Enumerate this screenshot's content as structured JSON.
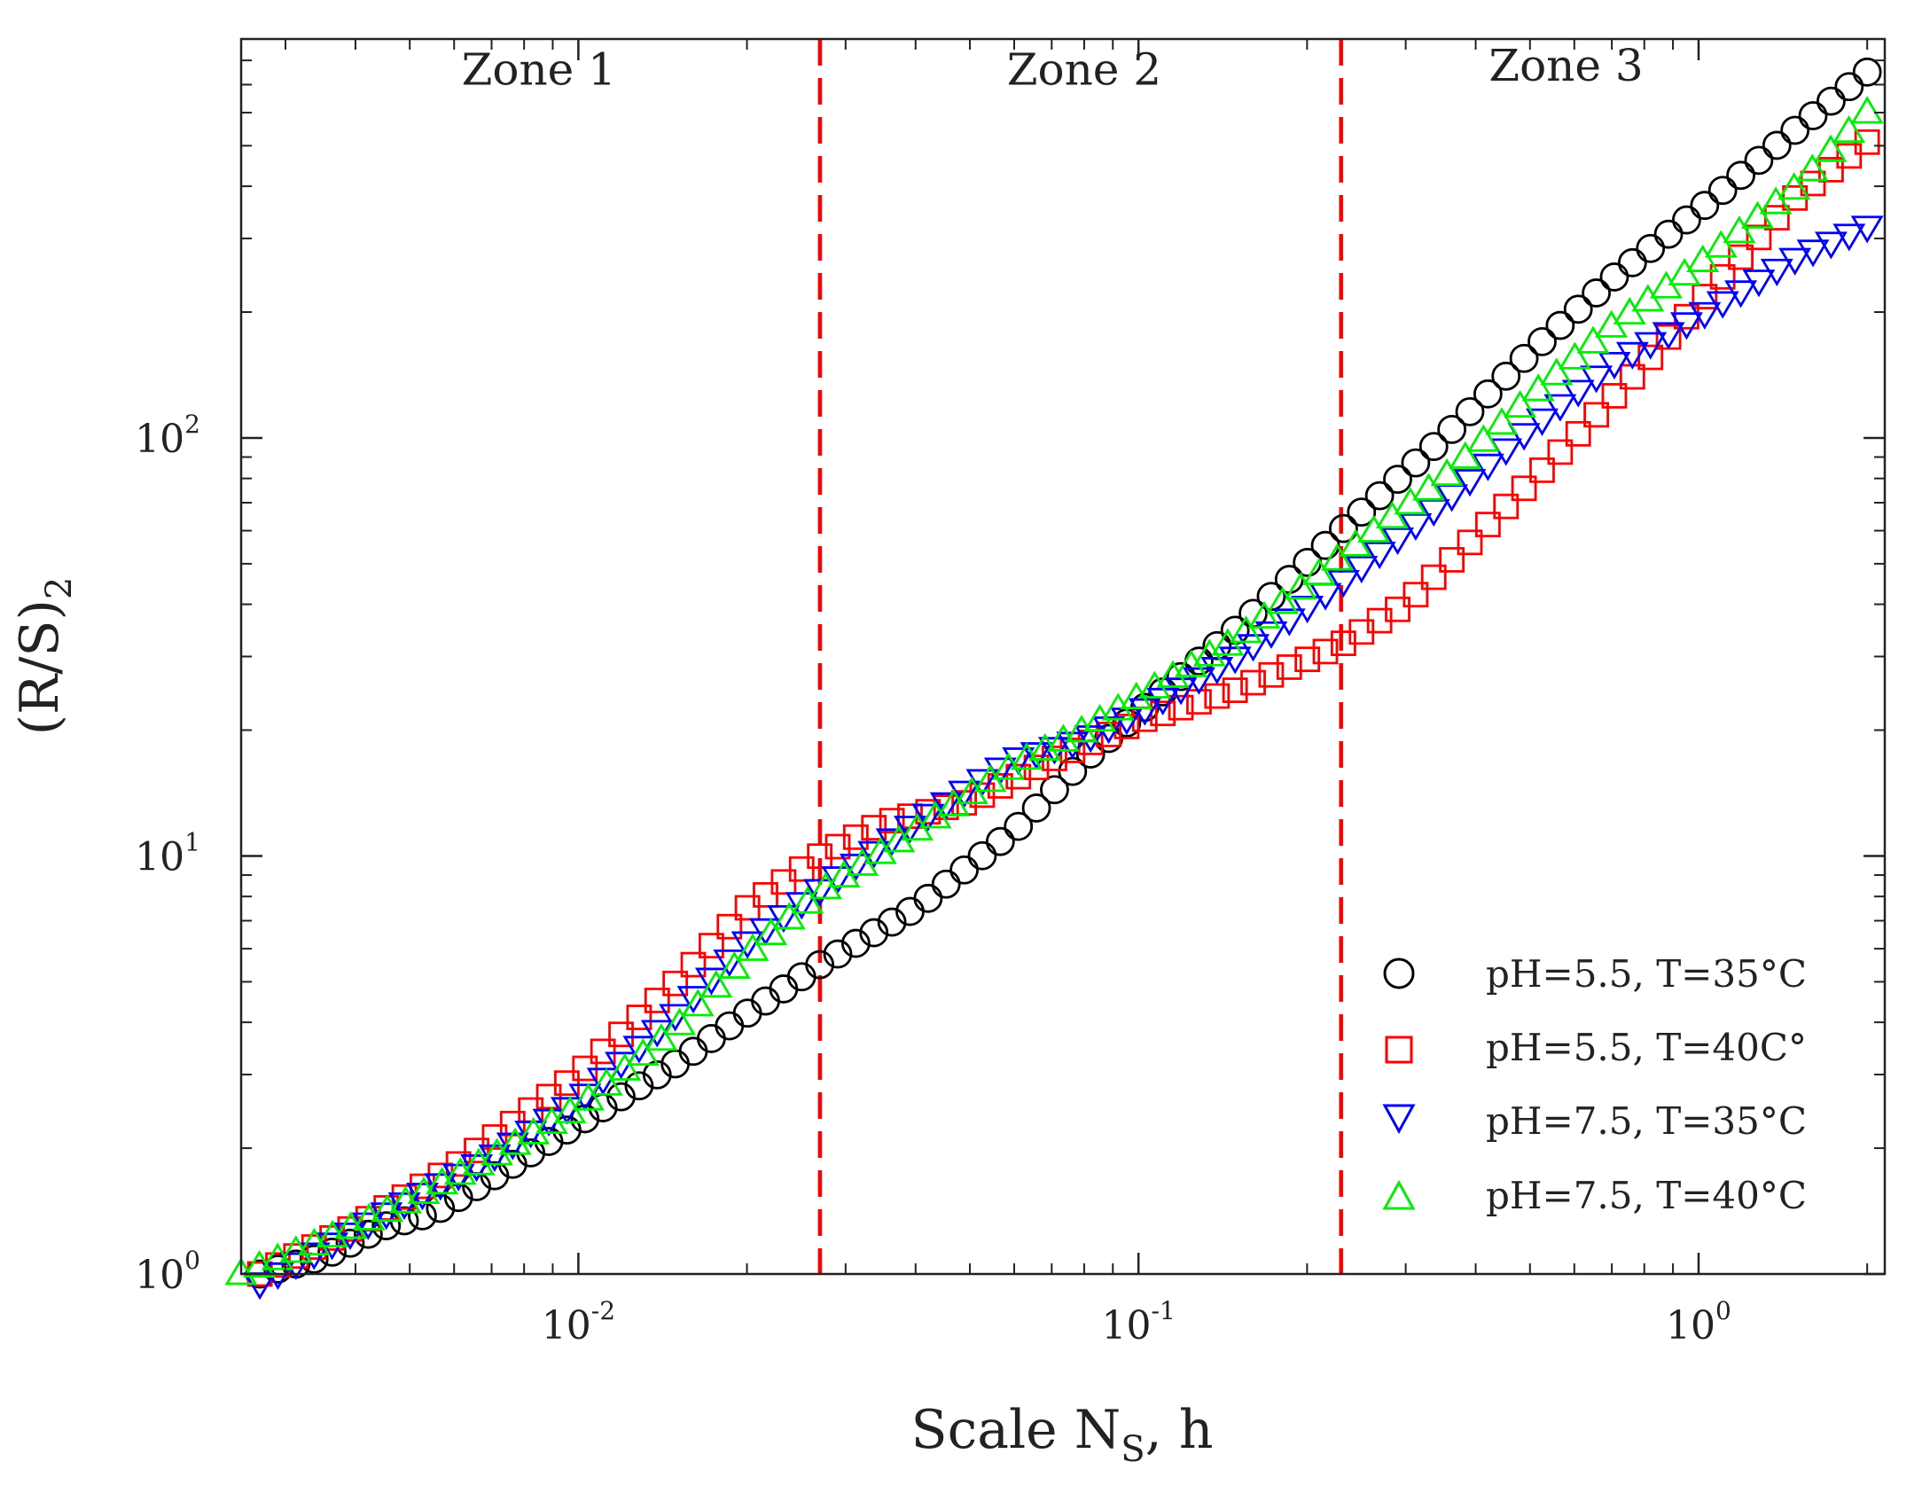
{
  "chart_data": {
    "type": "scatter",
    "title": "",
    "xscale": "log",
    "yscale": "log",
    "xlim": [
      0.0025,
      2.15
    ],
    "ylim": [
      1.0,
      900
    ],
    "xlabel": {
      "main": "Scale N",
      "sub": "S",
      "suffix": ", h"
    },
    "ylabel": {
      "main": "(R/S)",
      "sub": "2"
    },
    "xticks": [
      {
        "base": "10",
        "exp": "-2",
        "value": 0.01
      },
      {
        "base": "10",
        "exp": "-1",
        "value": 0.1
      },
      {
        "base": "10",
        "exp": "0",
        "value": 1
      }
    ],
    "yticks": [
      {
        "base": "10",
        "exp": "0",
        "value": 1
      },
      {
        "base": "10",
        "exp": "1",
        "value": 10
      },
      {
        "base": "10",
        "exp": "2",
        "value": 100
      }
    ],
    "zone_boundaries": [
      0.027,
      0.23
    ],
    "zones": [
      {
        "label": "Zone 1",
        "x": 0.0085,
        "y": 700
      },
      {
        "label": "Zone 2",
        "x": 0.08,
        "y": 700
      },
      {
        "label": "Zone 3",
        "x": 0.58,
        "y": 715
      }
    ],
    "legend_position": "bottom-right",
    "series": [
      {
        "name": "pH=5.5, T=35°C",
        "marker": "circle",
        "color": "#000000",
        "points": [
          [
            0.0027,
            1.0
          ],
          [
            0.0035,
            1.1
          ],
          [
            0.0045,
            1.3
          ],
          [
            0.0055,
            1.4
          ],
          [
            0.007,
            1.7
          ],
          [
            0.01,
            2.3
          ],
          [
            0.015,
            3.2
          ],
          [
            0.02,
            4.2
          ],
          [
            0.027,
            5.5
          ],
          [
            0.04,
            7.5
          ],
          [
            0.06,
            11.5
          ],
          [
            0.08,
            17
          ],
          [
            0.1,
            22
          ],
          [
            0.15,
            35
          ],
          [
            0.23,
            60
          ],
          [
            0.35,
            100
          ],
          [
            0.5,
            160
          ],
          [
            0.7,
            240
          ],
          [
            1.0,
            350
          ],
          [
            1.5,
            550
          ],
          [
            2.0,
            750
          ]
        ]
      },
      {
        "name": "pH=5.5, T=40C°",
        "marker": "square",
        "color": "#ff0000",
        "points": [
          [
            0.0027,
            1.0
          ],
          [
            0.004,
            1.3
          ],
          [
            0.006,
            1.8
          ],
          [
            0.008,
            2.4
          ],
          [
            0.01,
            3.0
          ],
          [
            0.015,
            5.0
          ],
          [
            0.02,
            7.5
          ],
          [
            0.027,
            10
          ],
          [
            0.035,
            12
          ],
          [
            0.05,
            13.5
          ],
          [
            0.07,
            17
          ],
          [
            0.1,
            21
          ],
          [
            0.15,
            25
          ],
          [
            0.23,
            32
          ],
          [
            0.3,
            40
          ],
          [
            0.4,
            58
          ],
          [
            0.6,
            100
          ],
          [
            0.8,
            150
          ],
          [
            1.0,
            210
          ],
          [
            1.5,
            380
          ],
          [
            2.0,
            510
          ]
        ]
      },
      {
        "name": "pH=7.5, T=35°C",
        "marker": "triangle-down",
        "color": "#0000ff",
        "points": [
          [
            0.0027,
            0.95
          ],
          [
            0.0035,
            1.15
          ],
          [
            0.005,
            1.5
          ],
          [
            0.007,
            1.9
          ],
          [
            0.01,
            2.6
          ],
          [
            0.015,
            4.2
          ],
          [
            0.02,
            6.2
          ],
          [
            0.027,
            8.3
          ],
          [
            0.04,
            12
          ],
          [
            0.06,
            17
          ],
          [
            0.08,
            19
          ],
          [
            0.1,
            22
          ],
          [
            0.15,
            30
          ],
          [
            0.23,
            45
          ],
          [
            0.35,
            70
          ],
          [
            0.5,
            105
          ],
          [
            0.7,
            150
          ],
          [
            1.0,
            195
          ],
          [
            1.5,
            270
          ],
          [
            2.0,
            320
          ]
        ]
      },
      {
        "name": "pH=7.5, T=40°C",
        "marker": "triangle-up",
        "color": "#00ee00",
        "points": [
          [
            0.0025,
            1.0
          ],
          [
            0.0035,
            1.2
          ],
          [
            0.005,
            1.5
          ],
          [
            0.007,
            1.9
          ],
          [
            0.01,
            2.5
          ],
          [
            0.015,
            3.9
          ],
          [
            0.02,
            5.8
          ],
          [
            0.027,
            8.2
          ],
          [
            0.04,
            11.5
          ],
          [
            0.06,
            16.5
          ],
          [
            0.08,
            20
          ],
          [
            0.1,
            24
          ],
          [
            0.15,
            33
          ],
          [
            0.23,
            52
          ],
          [
            0.35,
            80
          ],
          [
            0.5,
            125
          ],
          [
            0.7,
            185
          ],
          [
            1.0,
            260
          ],
          [
            1.5,
            400
          ],
          [
            2.0,
            600
          ]
        ]
      }
    ]
  }
}
